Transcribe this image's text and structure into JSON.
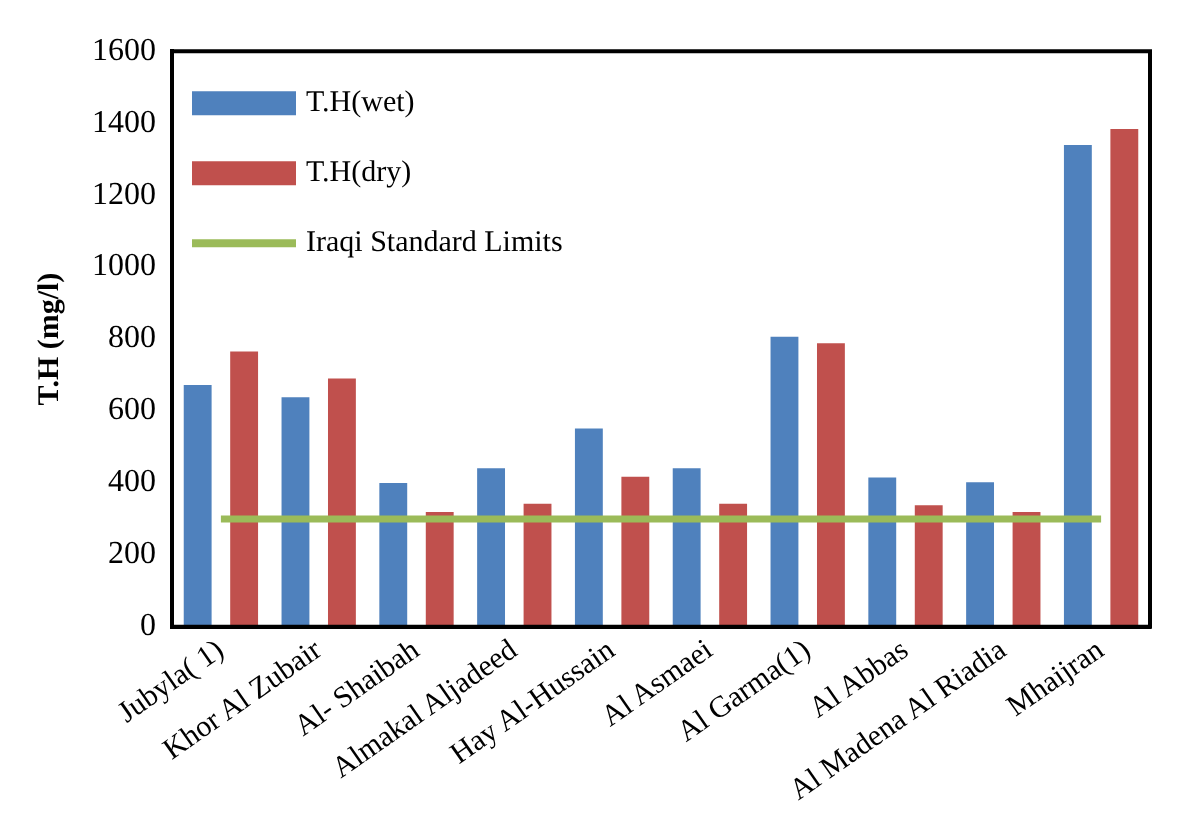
{
  "chart_data": {
    "type": "bar",
    "ylabel": "T.H (mg/l)",
    "categories": [
      "Jubyla( 1)",
      "Khor Al Zubair",
      "Al- Shaibah",
      "Almakal Aljadeed",
      "Hay Al-Hussain",
      "Al Asmaei",
      "Al Garma(1)",
      "Al Abbas",
      "Al Madena Al Riadia",
      "Mhaijran"
    ],
    "series": [
      {
        "name": "T.H(wet)",
        "color": "#4f81bd",
        "values": [
          672,
          638,
          400,
          441,
          551,
          441,
          806,
          415,
          402,
          1339
        ]
      },
      {
        "name": "T.H(dry)",
        "color": "#c0504d",
        "values": [
          765,
          690,
          319,
          342,
          417,
          342,
          788,
          338,
          319,
          1384
        ]
      },
      {
        "name": "Iraqi Standard Limits",
        "type": "line",
        "color": "#9bbb59",
        "marker": "none",
        "values": [
          300,
          300,
          300,
          300,
          300,
          300,
          300,
          300,
          300,
          300
        ]
      }
    ],
    "ylim": [
      0,
      1600
    ],
    "yticks": [
      0,
      200,
      400,
      600,
      800,
      1000,
      1200,
      1400,
      1600
    ],
    "grid": false,
    "legend": "top left"
  }
}
